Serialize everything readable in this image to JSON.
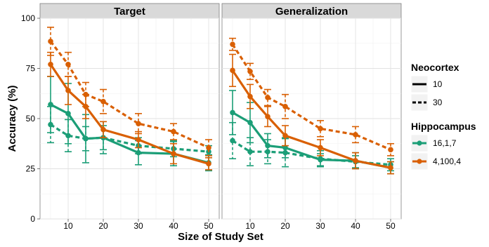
{
  "chart_data": {
    "type": "line",
    "ylabel": "Accuracy (%)",
    "xlabel": "Size of Study Set",
    "ylim": [
      0,
      100
    ],
    "yticks": [
      0,
      25,
      50,
      75,
      100
    ],
    "xticks": [
      10,
      20,
      30,
      40,
      50
    ],
    "x_range": [
      2,
      53
    ],
    "grid": true,
    "legend_position": "right",
    "legend": {
      "neocortex_title": "Neocortex",
      "neocortex_items": [
        {
          "label": "10",
          "linestyle": "solid"
        },
        {
          "label": "30",
          "linestyle": "dashed"
        }
      ],
      "hippocampus_title": "Hippocampus",
      "hippocampus_items": [
        {
          "label": "16,1,7",
          "color": "#1b9e77"
        },
        {
          "label": "4,100,4",
          "color": "#d95f02"
        }
      ]
    },
    "panels": [
      {
        "title": "Target",
        "series": [
          {
            "hippocampus": "16,1,7",
            "neocortex": "10",
            "x": [
              5,
              10,
              15,
              20,
              30,
              40,
              50
            ],
            "y": [
              57,
              52.5,
              40,
              40.5,
              33,
              32.5,
              28
            ],
            "err": [
              14,
              15,
              12,
              6,
              6,
              6,
              4
            ]
          },
          {
            "hippocampus": "16,1,7",
            "neocortex": "30",
            "x": [
              5,
              10,
              15,
              20,
              30,
              40,
              50
            ],
            "y": [
              47,
              41.5,
              40,
              40.5,
              36.5,
              35,
              33.5
            ],
            "err": [
              9,
              8,
              6,
              8,
              4,
              4,
              3
            ]
          },
          {
            "hippocampus": "4,100,4",
            "neocortex": "10",
            "x": [
              5,
              10,
              15,
              20,
              30,
              40,
              50
            ],
            "y": [
              77,
              64,
              56,
              44.5,
              39.5,
              32.5,
              27.5
            ],
            "err": [
              6,
              7,
              6,
              4,
              4,
              5,
              3
            ]
          },
          {
            "hippocampus": "4,100,4",
            "neocortex": "30",
            "x": [
              5,
              10,
              15,
              20,
              30,
              40,
              50
            ],
            "y": [
              88.5,
              77,
              62,
              58.5,
              47.5,
              43.5,
              35.5
            ],
            "err": [
              7,
              6,
              6,
              6,
              5,
              4,
              4
            ]
          }
        ]
      },
      {
        "title": "Generalization",
        "series": [
          {
            "hippocampus": "16,1,7",
            "neocortex": "10",
            "x": [
              5,
              10,
              15,
              20,
              30,
              40,
              50
            ],
            "y": [
              53,
              48,
              36.5,
              35.5,
              29.5,
              29,
              25.5
            ],
            "err": [
              11,
              10,
              6,
              5,
              3,
              4,
              3
            ]
          },
          {
            "hippocampus": "16,1,7",
            "neocortex": "30",
            "x": [
              5,
              10,
              15,
              20,
              30,
              40,
              50
            ],
            "y": [
              39,
              33.5,
              33.5,
              33,
              30,
              28.5,
              27
            ],
            "err": [
              9,
              7,
              6,
              7,
              4,
              3,
              3
            ]
          },
          {
            "hippocampus": "4,100,4",
            "neocortex": "10",
            "x": [
              5,
              10,
              15,
              20,
              30,
              40,
              50
            ],
            "y": [
              74,
              61,
              51,
              41.5,
              35.5,
              29,
              25.5
            ],
            "err": [
              8,
              6,
              5,
              5,
              4,
              4,
              3
            ]
          },
          {
            "hippocampus": "4,100,4",
            "neocortex": "30",
            "x": [
              5,
              10,
              15,
              20,
              30,
              40,
              50
            ],
            "y": [
              87,
              73.5,
              60.5,
              56,
              45,
              42,
              34.5
            ],
            "err": [
              3,
              4,
              4,
              6,
              4,
              4,
              3
            ]
          }
        ]
      }
    ]
  }
}
